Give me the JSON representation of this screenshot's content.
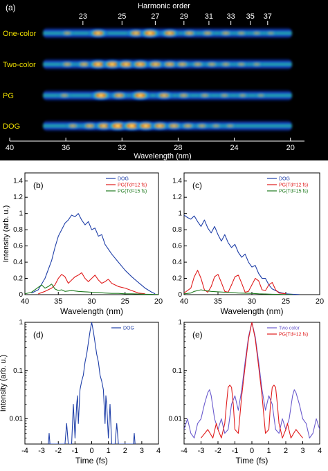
{
  "chart_data": [
    {
      "panel": "(a)",
      "type": "heatmap",
      "top_axis_label": "Harmonic order",
      "top_ticks": [
        23,
        25,
        27,
        29,
        31,
        33,
        35,
        37
      ],
      "xlabel": "Wavelength (nm)",
      "xlim": [
        40,
        19
      ],
      "xticks": [
        40,
        36,
        32,
        28,
        24,
        20
      ],
      "rows": [
        {
          "label": "One-color",
          "blobs": [
            [
              35.9,
              0.35
            ],
            [
              33.7,
              0.85
            ],
            [
              31.0,
              0.75
            ],
            [
              30.0,
              0.95
            ],
            [
              28.6,
              0.8
            ],
            [
              27.2,
              0.55
            ],
            [
              25.9,
              0.45
            ],
            [
              24.6,
              0.4
            ],
            [
              23.5,
              0.3
            ],
            [
              22.4,
              0.25
            ],
            [
              21.4,
              0.2
            ]
          ]
        },
        {
          "label": "Two-color",
          "blobs": [
            [
              35.9,
              0.45
            ],
            [
              34.7,
              0.55
            ],
            [
              33.7,
              0.9
            ],
            [
              32.7,
              0.9
            ],
            [
              31.7,
              0.85
            ],
            [
              30.7,
              0.85
            ],
            [
              29.6,
              0.75
            ],
            [
              28.6,
              0.65
            ],
            [
              27.7,
              0.55
            ],
            [
              26.6,
              0.45
            ],
            [
              25.6,
              0.4
            ],
            [
              24.6,
              0.35
            ],
            [
              23.5,
              0.3
            ],
            [
              22.4,
              0.25
            ]
          ]
        },
        {
          "label": "PG",
          "blobs": [
            [
              36.1,
              0.35
            ],
            [
              33.5,
              0.95
            ],
            [
              32.2,
              0.7
            ],
            [
              30.7,
              0.95
            ],
            [
              29.0,
              0.7
            ],
            [
              27.6,
              0.45
            ],
            [
              26.1,
              0.35
            ],
            [
              24.7,
              0.3
            ],
            [
              23.4,
              0.25
            ],
            [
              22.1,
              0.2
            ]
          ]
        },
        {
          "label": "DOG",
          "blobs": [
            [
              35.5,
              0.45
            ],
            [
              34.3,
              0.6
            ],
            [
              33.3,
              0.8
            ],
            [
              32.3,
              0.98
            ],
            [
              31.3,
              0.98
            ],
            [
              30.3,
              0.92
            ],
            [
              29.3,
              0.8
            ],
            [
              28.3,
              0.65
            ],
            [
              27.3,
              0.5
            ],
            [
              26.3,
              0.4
            ],
            [
              25.3,
              0.3
            ],
            [
              24.3,
              0.25
            ]
          ]
        }
      ]
    },
    {
      "panel": "(b)",
      "type": "line",
      "xlabel": "Wavelength (nm)",
      "ylabel": "Intensity (arb. u.)",
      "xlim": [
        40,
        20
      ],
      "ylim": [
        0,
        1.5
      ],
      "xticks": [
        40,
        35,
        30,
        25,
        20
      ],
      "yticks": [
        0,
        0.2,
        0.4,
        0.6,
        0.8,
        1,
        1.2,
        1.4
      ],
      "series": [
        {
          "name": "DOG",
          "color": "#1f3fa8",
          "x": [
            39,
            38,
            37,
            36,
            35.5,
            35,
            34.5,
            34,
            33.5,
            33,
            32.5,
            32,
            31.5,
            31,
            30.5,
            30,
            29.5,
            29,
            28.5,
            28,
            27,
            26,
            25,
            24,
            23,
            22,
            21,
            20.5
          ],
          "y": [
            0.02,
            0.06,
            0.2,
            0.42,
            0.58,
            0.72,
            0.8,
            0.88,
            0.92,
            0.98,
            0.96,
            1.0,
            0.92,
            0.86,
            0.9,
            0.8,
            0.82,
            0.72,
            0.74,
            0.62,
            0.5,
            0.4,
            0.3,
            0.22,
            0.15,
            0.08,
            0.03,
            0.01
          ]
        },
        {
          "name": "PG(Td=12 fs)",
          "color": "#e01b1b",
          "x": [
            38,
            37,
            36,
            35.5,
            35,
            34.5,
            34,
            33.5,
            33,
            32.5,
            32,
            31.5,
            31,
            30.5,
            30,
            29.5,
            29,
            28.5,
            28,
            27.5,
            27,
            26,
            25,
            24,
            23,
            22
          ],
          "y": [
            0.01,
            0.04,
            0.08,
            0.12,
            0.2,
            0.25,
            0.22,
            0.14,
            0.18,
            0.22,
            0.24,
            0.27,
            0.2,
            0.16,
            0.2,
            0.24,
            0.18,
            0.14,
            0.16,
            0.19,
            0.14,
            0.1,
            0.08,
            0.05,
            0.02,
            0.01
          ]
        },
        {
          "name": "PG(Td=15 fs)",
          "color": "#1e7a1e",
          "x": [
            40,
            39,
            38,
            37.5,
            37,
            36.5,
            36,
            35.5,
            35,
            34.5,
            34,
            33,
            32,
            31,
            30,
            29,
            28,
            27,
            26,
            25,
            24,
            23,
            22,
            21,
            20
          ],
          "y": [
            0.01,
            0.03,
            0.09,
            0.12,
            0.08,
            0.1,
            0.13,
            0.07,
            0.05,
            0.06,
            0.04,
            0.05,
            0.04,
            0.035,
            0.03,
            0.025,
            0.02,
            0.015,
            0.015,
            0.01,
            0.01,
            0.008,
            0.005,
            0.003,
            0.002
          ]
        }
      ]
    },
    {
      "panel": "(c)",
      "type": "line",
      "xlabel": "Wavelength (nm)",
      "ylabel": "",
      "xlim": [
        40,
        20
      ],
      "ylim": [
        0,
        1.5
      ],
      "xticks": [
        40,
        35,
        30,
        25,
        20
      ],
      "yticks": [
        0,
        0.2,
        0.4,
        0.6,
        0.8,
        1,
        1.2,
        1.4
      ],
      "series": [
        {
          "name": "DOG",
          "color": "#1f3fa8",
          "x": [
            40,
            39.5,
            39,
            38.5,
            38,
            37.5,
            37,
            36.5,
            36,
            35.5,
            35,
            34.5,
            34,
            33.5,
            33,
            32.5,
            32,
            31.5,
            31,
            30.5,
            30,
            29.5,
            29,
            28.5,
            28,
            27.5,
            27,
            26,
            25,
            24,
            23
          ],
          "y": [
            0.98,
            0.95,
            0.93,
            0.97,
            0.9,
            0.84,
            0.92,
            0.82,
            0.76,
            0.84,
            0.74,
            0.66,
            0.74,
            0.64,
            0.58,
            0.62,
            0.52,
            0.46,
            0.5,
            0.4,
            0.34,
            0.36,
            0.26,
            0.2,
            0.2,
            0.12,
            0.07,
            0.03,
            0.01,
            0.005,
            0.002
          ]
        },
        {
          "name": "PG(Td=12 fs)",
          "color": "#e01b1b",
          "x": [
            40,
            39,
            38.5,
            38,
            37.5,
            37,
            36.5,
            36,
            35.5,
            35,
            34.5,
            34,
            33.5,
            33,
            32.5,
            32,
            31.5,
            31,
            30.5,
            30,
            29.5,
            29,
            28.5,
            28,
            27.5,
            27,
            26.5,
            26,
            25
          ],
          "y": [
            0.02,
            0.08,
            0.22,
            0.3,
            0.2,
            0.06,
            0.03,
            0.1,
            0.22,
            0.25,
            0.15,
            0.04,
            0.03,
            0.12,
            0.22,
            0.24,
            0.14,
            0.03,
            0.04,
            0.12,
            0.2,
            0.17,
            0.06,
            0.05,
            0.12,
            0.15,
            0.06,
            0.02,
            0.01
          ]
        },
        {
          "name": "PG(Td=15 fs)",
          "color": "#1e7a1e",
          "x": [
            40,
            39,
            38.5,
            38,
            37.5,
            37,
            36,
            35,
            34,
            33,
            32,
            31,
            30,
            29,
            28,
            27,
            26,
            25,
            24
          ],
          "y": [
            0.01,
            0.02,
            0.04,
            0.05,
            0.06,
            0.05,
            0.04,
            0.035,
            0.03,
            0.025,
            0.02,
            0.018,
            0.015,
            0.01,
            0.008,
            0.005,
            0.003,
            0.002,
            0.001
          ]
        }
      ]
    },
    {
      "panel": "(d)",
      "type": "line",
      "xlabel": "Time (fs)",
      "ylabel": "Intensity (arb. u.)",
      "xlim": [
        -4,
        4
      ],
      "ylim": [
        0.003,
        1
      ],
      "yscale": "log",
      "xticks": [
        -4,
        -3,
        -2,
        -1,
        0,
        1,
        2,
        3,
        4
      ],
      "yticks": [
        0.01,
        0.1,
        1
      ],
      "series": [
        {
          "name": "DOG",
          "color": "#1f3fa8",
          "x": [
            -2.6,
            -2.55,
            -2.5,
            -1.6,
            -1.5,
            -1.4,
            -1.2,
            -1.1,
            -1.0,
            -0.9,
            -0.85,
            -0.8,
            -0.7,
            -0.6,
            -0.5,
            -0.4,
            -0.3,
            -0.2,
            -0.1,
            0,
            0.1,
            0.2,
            0.3,
            0.4,
            0.5,
            0.6,
            0.7,
            0.8,
            0.85,
            0.9,
            1.0,
            1.1,
            1.2,
            1.4,
            1.5,
            1.6,
            2.5,
            2.55,
            2.6
          ],
          "y": [
            0.003,
            0.005,
            0.003,
            0.003,
            0.008,
            0.003,
            0.003,
            0.02,
            0.004,
            0.02,
            0.03,
            0.008,
            0.04,
            0.06,
            0.08,
            0.15,
            0.22,
            0.38,
            0.65,
            1.0,
            0.65,
            0.38,
            0.22,
            0.15,
            0.08,
            0.06,
            0.04,
            0.008,
            0.03,
            0.02,
            0.004,
            0.02,
            0.003,
            0.003,
            0.008,
            0.003,
            0.003,
            0.005,
            0.003
          ]
        }
      ]
    },
    {
      "panel": "(e)",
      "type": "line",
      "xlabel": "Time (fs)",
      "ylabel": "",
      "xlim": [
        -4,
        4
      ],
      "ylim": [
        0.003,
        1
      ],
      "yscale": "log",
      "xticks": [
        -4,
        -3,
        -2,
        -1,
        0,
        1,
        2,
        3,
        4
      ],
      "yticks": [
        0.01,
        0.1,
        1
      ],
      "series": [
        {
          "name": "Two color",
          "color": "#6a5acd",
          "x": [
            -4,
            -3.8,
            -3.6,
            -3.4,
            -3.2,
            -3.0,
            -2.8,
            -2.6,
            -2.5,
            -2.4,
            -2.2,
            -2.0,
            -1.8,
            -1.6,
            -1.4,
            -1.2,
            -1.0,
            -0.8,
            -0.6,
            -0.4,
            -0.2,
            0,
            0.2,
            0.4,
            0.6,
            0.8,
            1.0,
            1.2,
            1.4,
            1.6,
            1.8,
            2.0,
            2.2,
            2.4,
            2.5,
            2.6,
            2.8,
            3.0,
            3.2,
            3.4,
            3.6,
            3.8,
            4.0
          ],
          "y": [
            0.006,
            0.01,
            0.005,
            0.004,
            0.008,
            0.01,
            0.02,
            0.035,
            0.04,
            0.03,
            0.01,
            0.006,
            0.01,
            0.005,
            0.006,
            0.02,
            0.03,
            0.015,
            0.04,
            0.15,
            0.5,
            1.0,
            0.5,
            0.15,
            0.04,
            0.015,
            0.03,
            0.02,
            0.006,
            0.005,
            0.01,
            0.006,
            0.01,
            0.03,
            0.04,
            0.035,
            0.02,
            0.01,
            0.008,
            0.004,
            0.005,
            0.01,
            0.006
          ]
        },
        {
          "name": "PG(Td=12 fs)",
          "color": "#e01b1b",
          "x": [
            -3.0,
            -2.6,
            -2.3,
            -2.1,
            -2.0,
            -1.8,
            -1.6,
            -1.5,
            -1.4,
            -1.3,
            -1.2,
            -1.1,
            -1.0,
            -0.8,
            -0.6,
            -0.4,
            -0.2,
            0,
            0.2,
            0.4,
            0.6,
            0.8,
            1.0,
            1.1,
            1.2,
            1.3,
            1.4,
            1.5,
            1.6,
            1.8,
            2.0,
            2.1,
            2.3,
            2.6,
            3.0
          ],
          "y": [
            0.004,
            0.006,
            0.004,
            0.008,
            0.006,
            0.004,
            0.008,
            0.02,
            0.045,
            0.05,
            0.045,
            0.02,
            0.006,
            0.005,
            0.03,
            0.12,
            0.45,
            1.0,
            0.45,
            0.12,
            0.03,
            0.005,
            0.006,
            0.02,
            0.045,
            0.05,
            0.045,
            0.02,
            0.008,
            0.004,
            0.006,
            0.008,
            0.004,
            0.006,
            0.004
          ]
        }
      ]
    }
  ]
}
